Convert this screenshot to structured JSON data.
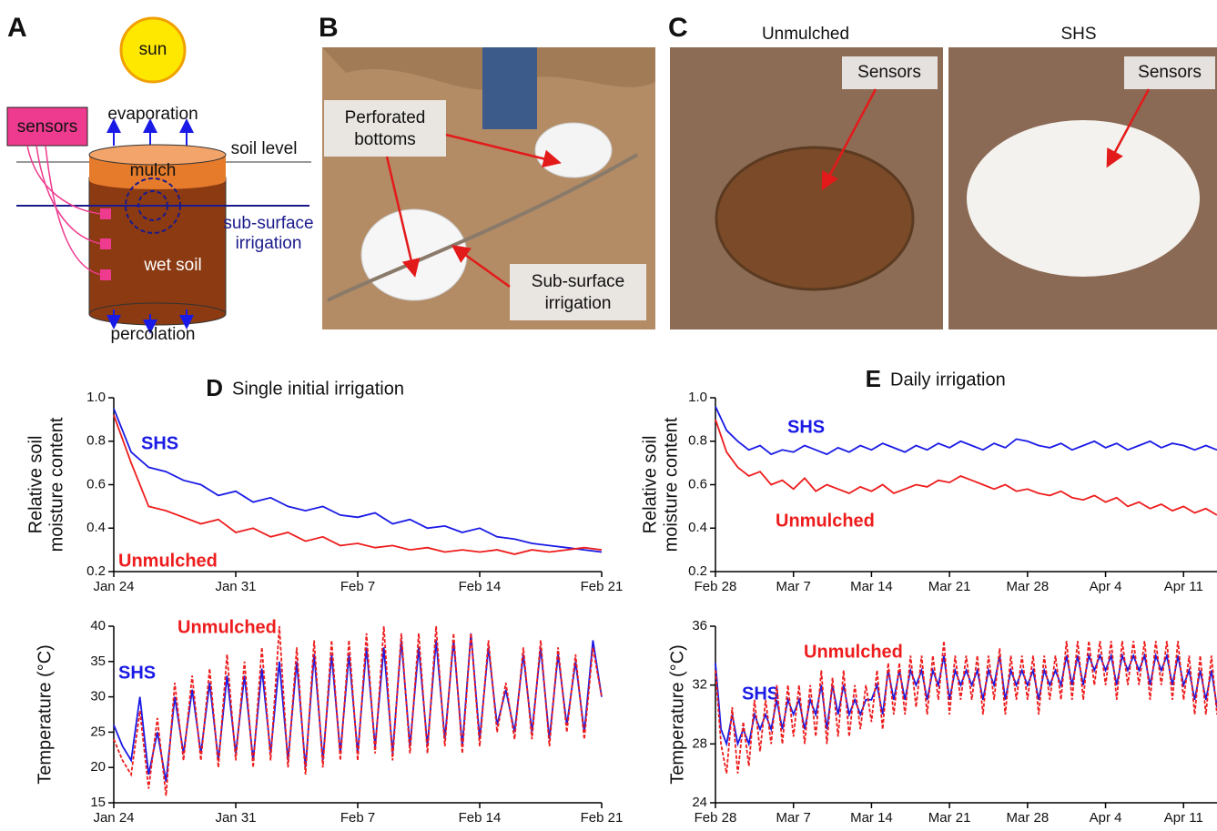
{
  "panel_a": {
    "letter": "A",
    "sun": "sun",
    "sensors": "sensors",
    "evaporation": "evaporation",
    "soil_level": "soil level",
    "mulch": "mulch",
    "irrigation": [
      "sub-surface",
      "irrigation"
    ],
    "wet_soil": "wet soil",
    "percolation": "percolation"
  },
  "panel_b": {
    "letter": "B",
    "callouts": [
      [
        "Perforated",
        "bottoms"
      ],
      [
        "Sub-surface",
        "irrigation"
      ]
    ]
  },
  "panel_c": {
    "letter": "C",
    "photos": [
      {
        "title": "Unmulched",
        "callout": "Sensors"
      },
      {
        "title": "SHS",
        "callout": "Sensors"
      }
    ]
  },
  "chart_data": [
    {
      "type": "line",
      "panel": "D",
      "title": "Single initial irrigation",
      "ylabel": [
        "Relative soil",
        "moisture content"
      ],
      "x": [
        0,
        1,
        2,
        3,
        4,
        5,
        6,
        7,
        8,
        9,
        10,
        11,
        12,
        13,
        14,
        15,
        16,
        17,
        18,
        19,
        20,
        21,
        22,
        23,
        24,
        25,
        26,
        27,
        28
      ],
      "series": [
        {
          "name": "SHS",
          "color": "#1a1ae6",
          "values": [
            0.95,
            0.75,
            0.68,
            0.66,
            0.62,
            0.6,
            0.55,
            0.57,
            0.52,
            0.54,
            0.5,
            0.48,
            0.5,
            0.46,
            0.45,
            0.47,
            0.42,
            0.44,
            0.4,
            0.41,
            0.38,
            0.4,
            0.36,
            0.35,
            0.33,
            0.32,
            0.31,
            0.3,
            0.29
          ]
        },
        {
          "name": "Unmulched",
          "color": "#ee1c1c",
          "values": [
            0.92,
            0.7,
            0.5,
            0.48,
            0.45,
            0.42,
            0.44,
            0.38,
            0.4,
            0.36,
            0.38,
            0.34,
            0.36,
            0.32,
            0.33,
            0.31,
            0.32,
            0.3,
            0.31,
            0.29,
            0.3,
            0.29,
            0.3,
            0.28,
            0.3,
            0.29,
            0.3,
            0.31,
            0.3
          ]
        }
      ],
      "xlim": [
        0,
        28
      ],
      "xticks": [
        {
          "value": 0,
          "label": "Jan 24"
        },
        {
          "value": 7,
          "label": "Jan 31"
        },
        {
          "value": 14,
          "label": "Feb 7"
        },
        {
          "value": 21,
          "label": "Feb 14"
        },
        {
          "value": 28,
          "label": "Feb 21"
        }
      ],
      "ylim": [
        0.2,
        1
      ],
      "yticks": [
        0.2,
        0.4,
        0.6,
        0.8,
        {
          "value": 1,
          "label": "1.0"
        }
      ]
    },
    {
      "type": "line",
      "ylabel": "Temperature (°C)",
      "x": [
        0,
        0.5,
        1,
        1.5,
        2,
        2.5,
        3,
        3.5,
        4,
        4.5,
        5,
        5.5,
        6,
        6.5,
        7,
        7.5,
        8,
        8.5,
        9,
        9.5,
        10,
        10.5,
        11,
        11.5,
        12,
        12.5,
        13,
        13.5,
        14,
        14.5,
        15,
        15.5,
        16,
        16.5,
        17,
        17.5,
        18,
        18.5,
        19,
        19.5,
        20,
        20.5,
        21,
        21.5,
        22,
        22.5,
        23,
        23.5,
        24,
        24.5,
        25,
        25.5,
        26,
        26.5,
        27,
        27.5,
        28
      ],
      "series": [
        {
          "name": "SHS",
          "color": "#1a1ae6",
          "values": [
            26,
            23,
            21,
            30,
            19,
            25,
            18,
            30,
            22,
            31,
            22,
            32,
            21,
            33,
            22,
            33,
            21,
            34,
            22,
            35,
            21,
            35,
            20,
            36,
            21,
            36,
            22,
            36,
            22,
            37,
            23,
            37,
            22,
            38,
            23,
            37,
            23,
            38,
            24,
            38,
            23,
            39,
            24,
            37,
            26,
            31,
            25,
            36,
            25,
            37,
            24,
            36,
            26,
            35,
            25,
            38,
            30
          ]
        },
        {
          "name": "Unmulched",
          "color": "#ee1c1c",
          "line_style": "dashed",
          "values": [
            24,
            21,
            19,
            28,
            17,
            27,
            16,
            32,
            21,
            33,
            21,
            34,
            20,
            36,
            21,
            35,
            20,
            37,
            21,
            40,
            20,
            37,
            19,
            38,
            20,
            38,
            21,
            38,
            21,
            39,
            22,
            40,
            21,
            39,
            22,
            39,
            22,
            40,
            23,
            39,
            22,
            39,
            23,
            38,
            25,
            32,
            24,
            37,
            24,
            38,
            23,
            37,
            25,
            36,
            24,
            37,
            30
          ]
        }
      ],
      "xlim": [
        0,
        28
      ],
      "xticks": [
        {
          "value": 0,
          "label": "Jan 24"
        },
        {
          "value": 7,
          "label": "Jan 31"
        },
        {
          "value": 14,
          "label": "Feb 7"
        },
        {
          "value": 21,
          "label": "Feb 14"
        },
        {
          "value": 28,
          "label": "Feb 21"
        }
      ],
      "ylim": [
        15,
        40
      ],
      "yticks": [
        15,
        20,
        25,
        30,
        35,
        40
      ]
    },
    {
      "type": "line",
      "panel": "E",
      "title": "Daily irrigation",
      "ylabel": [
        "Relative soil",
        "moisture content"
      ],
      "x": [
        0,
        1,
        2,
        3,
        4,
        5,
        6,
        7,
        8,
        9,
        10,
        11,
        12,
        13,
        14,
        15,
        16,
        17,
        18,
        19,
        20,
        21,
        22,
        23,
        24,
        25,
        26,
        27,
        28,
        29,
        30,
        31,
        32,
        33,
        34,
        35,
        36,
        37,
        38,
        39,
        40,
        41,
        42,
        43,
        44,
        45
      ],
      "series": [
        {
          "name": "SHS",
          "color": "#1a1ae6",
          "values": [
            0.96,
            0.85,
            0.8,
            0.76,
            0.78,
            0.74,
            0.76,
            0.75,
            0.78,
            0.76,
            0.74,
            0.77,
            0.75,
            0.78,
            0.76,
            0.79,
            0.77,
            0.75,
            0.78,
            0.76,
            0.79,
            0.77,
            0.8,
            0.78,
            0.76,
            0.79,
            0.77,
            0.81,
            0.8,
            0.78,
            0.77,
            0.79,
            0.76,
            0.78,
            0.8,
            0.77,
            0.79,
            0.76,
            0.78,
            0.8,
            0.77,
            0.79,
            0.78,
            0.76,
            0.78,
            0.76
          ]
        },
        {
          "name": "Unmulched",
          "color": "#ee1c1c",
          "values": [
            0.9,
            0.75,
            0.68,
            0.64,
            0.66,
            0.6,
            0.62,
            0.58,
            0.63,
            0.57,
            0.6,
            0.58,
            0.56,
            0.59,
            0.57,
            0.6,
            0.56,
            0.58,
            0.6,
            0.59,
            0.62,
            0.61,
            0.64,
            0.62,
            0.6,
            0.58,
            0.6,
            0.57,
            0.58,
            0.56,
            0.55,
            0.57,
            0.54,
            0.53,
            0.55,
            0.52,
            0.54,
            0.5,
            0.52,
            0.49,
            0.51,
            0.48,
            0.5,
            0.47,
            0.49,
            0.46
          ]
        }
      ],
      "xlim": [
        0,
        45
      ],
      "xticks": [
        {
          "value": 0,
          "label": "Feb 28"
        },
        {
          "value": 7,
          "label": "Mar 7"
        },
        {
          "value": 14,
          "label": "Mar 14"
        },
        {
          "value": 21,
          "label": "Mar 21"
        },
        {
          "value": 28,
          "label": "Mar 28"
        },
        {
          "value": 35,
          "label": "Apr 4"
        },
        {
          "value": 42,
          "label": "Apr 11"
        }
      ],
      "ylim": [
        0.2,
        1
      ],
      "yticks": [
        0.2,
        0.4,
        0.6,
        0.8,
        {
          "value": 1,
          "label": "1.0"
        }
      ]
    },
    {
      "type": "line",
      "ylabel": "Temperature (°C)",
      "x": [
        0,
        0.5,
        1,
        1.5,
        2,
        2.5,
        3,
        3.5,
        4,
        4.5,
        5,
        5.5,
        6,
        6.5,
        7,
        7.5,
        8,
        8.5,
        9,
        9.5,
        10,
        10.5,
        11,
        11.5,
        12,
        12.5,
        13,
        13.5,
        14,
        14.5,
        15,
        15.5,
        16,
        16.5,
        17,
        17.5,
        18,
        18.5,
        19,
        19.5,
        20,
        20.5,
        21,
        21.5,
        22,
        22.5,
        23,
        23.5,
        24,
        24.5,
        25,
        25.5,
        26,
        26.5,
        27,
        27.5,
        28,
        28.5,
        29,
        29.5,
        30,
        30.5,
        31,
        31.5,
        32,
        32.5,
        33,
        33.5,
        34,
        34.5,
        35,
        35.5,
        36,
        36.5,
        37,
        37.5,
        38,
        38.5,
        39,
        39.5,
        40,
        40.5,
        41,
        41.5,
        42,
        42.5,
        43,
        43.5,
        44,
        44.5,
        45
      ],
      "series": [
        {
          "name": "SHS",
          "color": "#1a1ae6",
          "values": [
            33.5,
            29,
            28,
            30,
            28,
            29,
            28,
            30,
            29,
            30,
            29,
            31,
            29,
            31,
            30,
            31,
            29,
            31,
            30,
            32,
            29,
            32,
            30,
            32,
            30,
            31,
            30,
            31,
            31,
            32,
            30,
            33,
            31,
            33,
            31,
            33,
            32,
            33,
            31,
            33,
            32,
            34,
            31,
            33,
            32,
            33,
            32,
            33,
            31,
            33,
            32,
            34,
            31,
            33,
            32,
            33,
            32,
            33,
            31,
            33,
            32,
            33,
            32,
            34,
            32,
            34,
            32,
            34,
            33,
            34,
            33,
            34,
            32,
            34,
            33,
            34,
            33,
            34,
            32,
            34,
            33,
            34,
            32,
            34,
            32,
            33,
            31,
            33,
            31,
            33,
            30.5
          ]
        },
        {
          "name": "Unmulched",
          "color": "#ee1c1c",
          "line_style": "dashed",
          "values": [
            33,
            28,
            26,
            30.5,
            26,
            29.5,
            26.5,
            31,
            27.5,
            31,
            28,
            32,
            28,
            32,
            28.5,
            32,
            28,
            32,
            28.5,
            33,
            28,
            32.5,
            28.5,
            33,
            28.5,
            32,
            29,
            32,
            29.5,
            33,
            29,
            33.5,
            30,
            33.5,
            30,
            34,
            30.5,
            34,
            30,
            34,
            31,
            35,
            30,
            34,
            31,
            34,
            31,
            34,
            30,
            34,
            31,
            34.5,
            30,
            34,
            31,
            34,
            31,
            34,
            30,
            34,
            31,
            34,
            31,
            35,
            31,
            35,
            31,
            35,
            32,
            35,
            32,
            35,
            31,
            35,
            32,
            35,
            32,
            35,
            31,
            35,
            32,
            35,
            31,
            35,
            31,
            34,
            30,
            34,
            30,
            34,
            30
          ]
        }
      ],
      "xlim": [
        0,
        45
      ],
      "xticks": [
        {
          "value": 0,
          "label": "Feb 28"
        },
        {
          "value": 7,
          "label": "Mar 7"
        },
        {
          "value": 14,
          "label": "Mar 14"
        },
        {
          "value": 21,
          "label": "Mar 21"
        },
        {
          "value": 28,
          "label": "Mar 28"
        },
        {
          "value": 35,
          "label": "Apr 4"
        },
        {
          "value": 42,
          "label": "Apr 11"
        }
      ],
      "ylim": [
        24,
        36
      ],
      "yticks": [
        24,
        28,
        32,
        36
      ]
    }
  ]
}
